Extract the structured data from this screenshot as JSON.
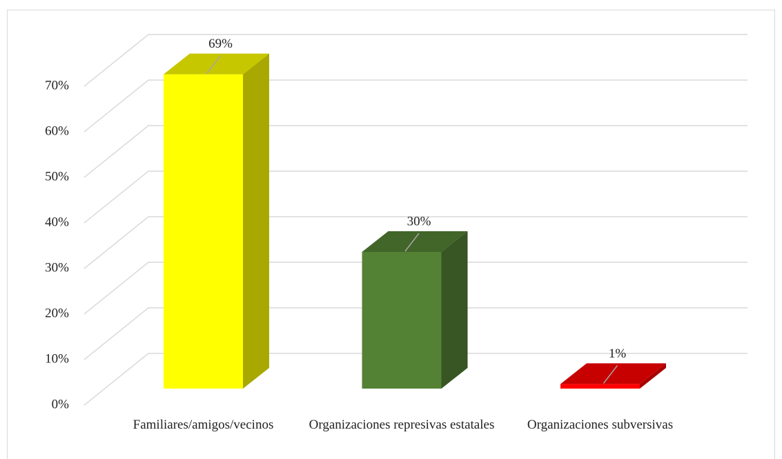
{
  "chart_data": {
    "type": "bar3d",
    "categories": [
      "Familiares/amigos/vecinos",
      "Organizaciones represivas estatales",
      "Organizaciones subversivas"
    ],
    "values": [
      69,
      30,
      1
    ],
    "value_labels": [
      "69%",
      "30%",
      "1%"
    ],
    "colors": [
      "#ffff00",
      "#548235",
      "#ff0000"
    ],
    "ylim": [
      0,
      70
    ],
    "yticks": [
      {
        "value": 0,
        "label": "0%"
      },
      {
        "value": 10,
        "label": "10%"
      },
      {
        "value": 20,
        "label": "20%"
      },
      {
        "value": 30,
        "label": "30%"
      },
      {
        "value": 40,
        "label": "40%"
      },
      {
        "value": 50,
        "label": "50%"
      },
      {
        "value": 60,
        "label": "60%"
      },
      {
        "value": 70,
        "label": "70%"
      }
    ],
    "grid": true
  }
}
